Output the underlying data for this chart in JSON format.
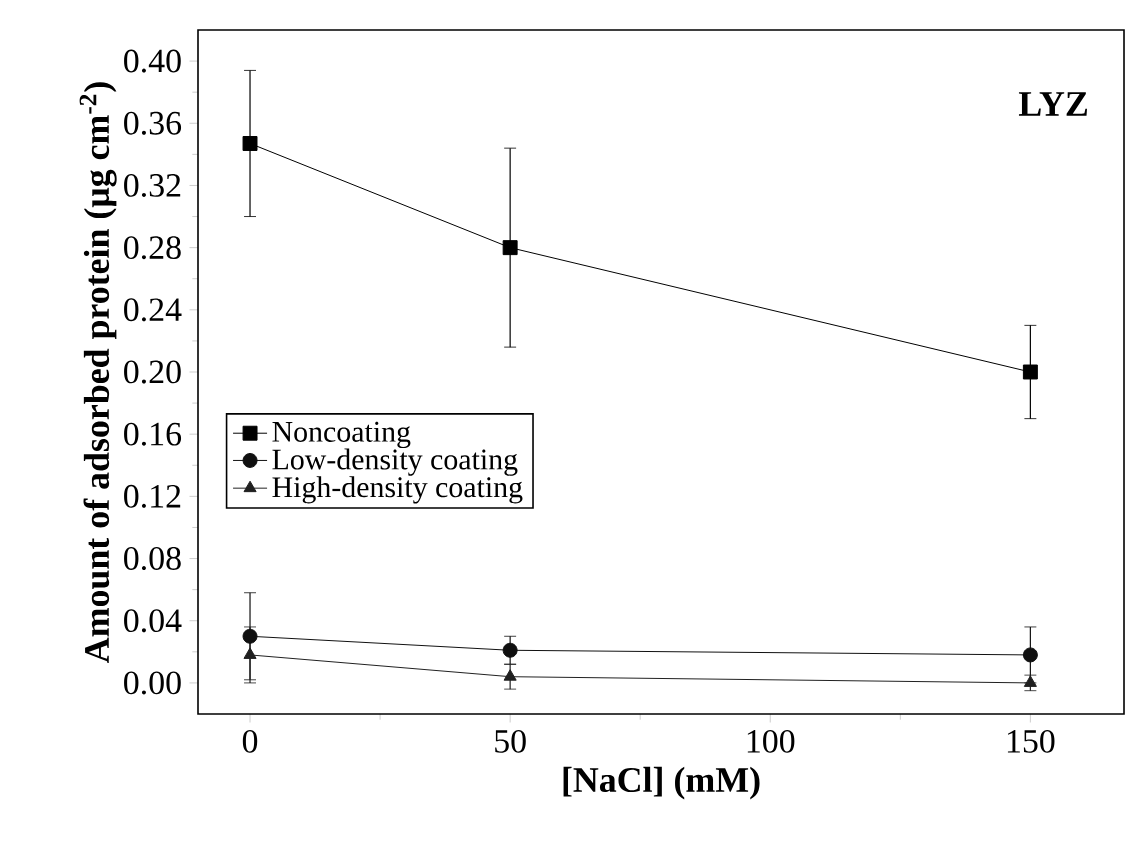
{
  "chart_data": {
    "type": "line",
    "xlabel": "[NaCl] (mM)",
    "ylabel": "Amount of adsorbed protein (μg cm$^{-2}$)",
    "annotations": [
      "LYZ"
    ],
    "x": [
      0,
      50,
      150
    ],
    "series": [
      {
        "name": "Noncoating",
        "color": "#000000",
        "marker": "square",
        "values": [
          0.347,
          0.28,
          0.2
        ],
        "errors": [
          0.047,
          0.064,
          0.03
        ]
      },
      {
        "name": "Low-density coating",
        "color": "#101010",
        "marker": "circle",
        "values": [
          0.03,
          0.021,
          0.018
        ],
        "errors": [
          0.028,
          0.009,
          0.018
        ]
      },
      {
        "name": "High-density coating",
        "color": "#202020",
        "marker": "triangle",
        "values": [
          0.018,
          0.004,
          0.0
        ],
        "errors": [
          0.018,
          0.008,
          0.005
        ]
      }
    ],
    "xlim": [
      -10,
      168
    ],
    "ylim": [
      -0.02,
      0.42
    ],
    "xticks": [
      0,
      50,
      100,
      150
    ],
    "yticks": [
      {
        "value": 0,
        "label": "0.00"
      },
      {
        "value": 0.04,
        "label": "0.04"
      },
      {
        "value": 0.08,
        "label": "0.08"
      },
      {
        "value": 0.12,
        "label": "0.12"
      },
      {
        "value": 0.16,
        "label": "0.16"
      },
      {
        "value": 0.2,
        "label": "0.20"
      },
      {
        "value": 0.24,
        "label": "0.24"
      },
      {
        "value": 0.28,
        "label": "0.28"
      },
      {
        "value": 0.32,
        "label": "0.32"
      },
      {
        "value": 0.36,
        "label": "0.36"
      },
      {
        "value": 0.4,
        "label": "0.40"
      }
    ],
    "legend": "left",
    "grid": false,
    "line_style": "solid"
  }
}
